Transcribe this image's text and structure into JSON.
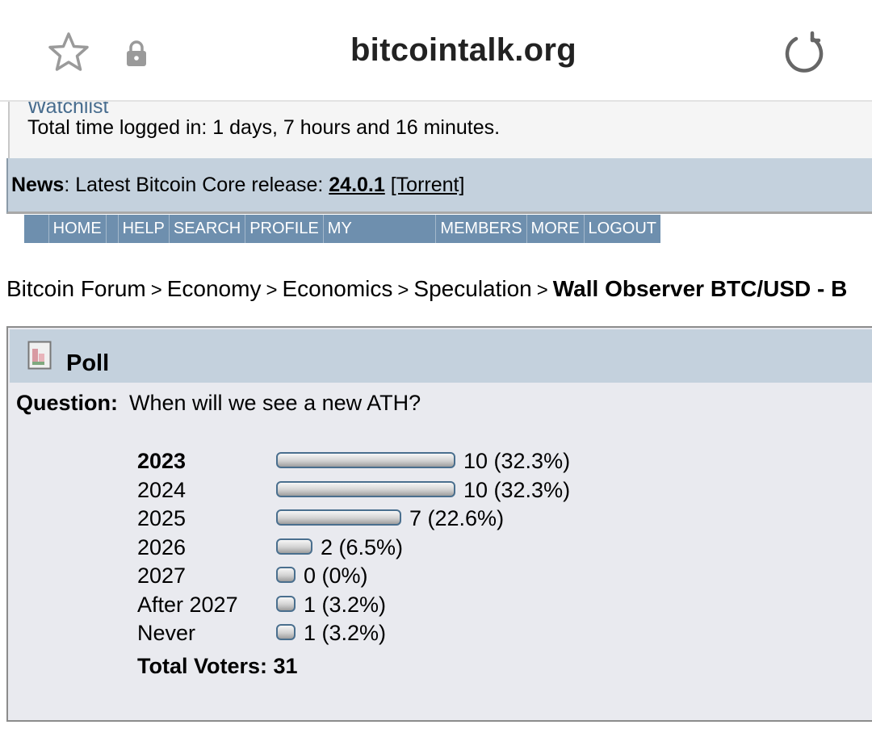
{
  "browser": {
    "domain": "bitcointalk.org",
    "icons": [
      "star-icon",
      "lock-icon",
      "reload-icon"
    ]
  },
  "user": {
    "watchlist_label": "Watchlist",
    "time_logged": "Total time logged in: 1 days, 7 hours and 16 minutes."
  },
  "news": {
    "label": "News",
    "text": ": Latest Bitcoin Core release: ",
    "version": "24.0.1",
    "torrent": "[Torrent]"
  },
  "menu": [
    "HOME",
    "HELP",
    "SEARCH",
    "PROFILE",
    "MY MESSAGES",
    "MEMBERS",
    "MORE",
    "LOGOUT"
  ],
  "breadcrumb": {
    "items": [
      "Bitcoin Forum",
      "Economy",
      "Economics",
      "Speculation"
    ],
    "separator": ">",
    "current": "Wall Observer BTC/USD - B"
  },
  "poll": {
    "title": "Poll",
    "question_label": "Question:",
    "question": "When will we see a new ATH?",
    "options": [
      {
        "label": "2023",
        "votes": 10,
        "percent": 32.3,
        "text": "10 (32.3%)",
        "bold": true
      },
      {
        "label": "2024",
        "votes": 10,
        "percent": 32.3,
        "text": "10 (32.3%)",
        "bold": false
      },
      {
        "label": "2025",
        "votes": 7,
        "percent": 22.6,
        "text": "7 (22.6%)",
        "bold": false
      },
      {
        "label": "2026",
        "votes": 2,
        "percent": 6.5,
        "text": "2 (6.5%)",
        "bold": false
      },
      {
        "label": "2027",
        "votes": 0,
        "percent": 0,
        "text": "0 (0%)",
        "bold": false
      },
      {
        "label": "After 2027",
        "votes": 1,
        "percent": 3.2,
        "text": "1 (3.2%)",
        "bold": false
      },
      {
        "label": "Never",
        "votes": 1,
        "percent": 3.2,
        "text": "1 (3.2%)",
        "bold": false
      }
    ],
    "total_label": "Total Voters: 31"
  },
  "colors": {
    "header_bg": "#c4d1dd",
    "menu_bg": "#6e8fae",
    "poll_bg": "#e9eaef",
    "bar_border": "#4a6f8e"
  }
}
